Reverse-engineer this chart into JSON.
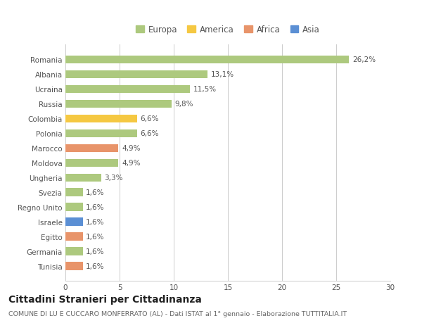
{
  "categories": [
    "Romania",
    "Albania",
    "Ucraina",
    "Russia",
    "Colombia",
    "Polonia",
    "Marocco",
    "Moldova",
    "Ungheria",
    "Svezia",
    "Regno Unito",
    "Israele",
    "Egitto",
    "Germania",
    "Tunisia"
  ],
  "values": [
    26.2,
    13.1,
    11.5,
    9.8,
    6.6,
    6.6,
    4.9,
    4.9,
    3.3,
    1.6,
    1.6,
    1.6,
    1.6,
    1.6,
    1.6
  ],
  "bar_colors": [
    "#adc97e",
    "#adc97e",
    "#adc97e",
    "#adc97e",
    "#f5c842",
    "#adc97e",
    "#e8946a",
    "#adc97e",
    "#adc97e",
    "#adc97e",
    "#adc97e",
    "#5b8fd4",
    "#e8946a",
    "#adc97e",
    "#e8946a"
  ],
  "labels": [
    "26,2%",
    "13,1%",
    "11,5%",
    "9,8%",
    "6,6%",
    "6,6%",
    "4,9%",
    "4,9%",
    "3,3%",
    "1,6%",
    "1,6%",
    "1,6%",
    "1,6%",
    "1,6%",
    "1,6%"
  ],
  "legend": [
    {
      "label": "Europa",
      "color": "#adc97e"
    },
    {
      "label": "America",
      "color": "#f5c842"
    },
    {
      "label": "Africa",
      "color": "#e8946a"
    },
    {
      "label": "Asia",
      "color": "#5b8fd4"
    }
  ],
  "xlim": [
    0,
    30
  ],
  "xticks": [
    0,
    5,
    10,
    15,
    20,
    25,
    30
  ],
  "title": "Cittadini Stranieri per Cittadinanza",
  "subtitle": "COMUNE DI LU E CUCCARO MONFERRATO (AL) - Dati ISTAT al 1° gennaio - Elaborazione TUTTITALIA.IT",
  "background_color": "#ffffff",
  "grid_color": "#cccccc",
  "bar_height": 0.55,
  "label_fontsize": 7.5,
  "tick_fontsize": 7.5,
  "title_fontsize": 10,
  "subtitle_fontsize": 6.8,
  "legend_fontsize": 8.5
}
